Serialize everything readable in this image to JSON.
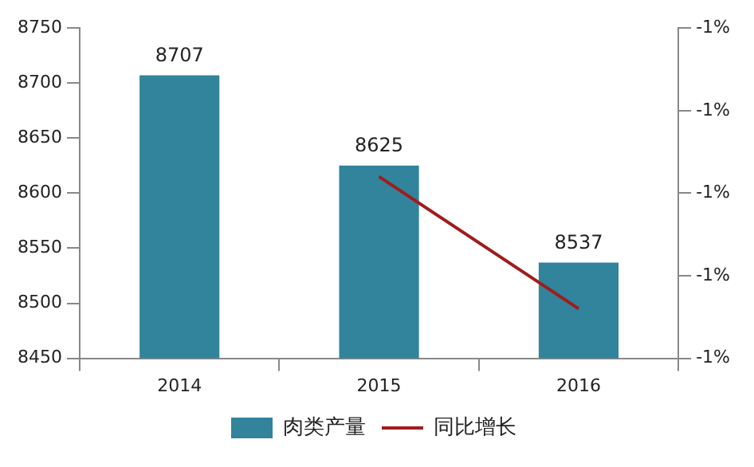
{
  "chart_data": {
    "type": "bar",
    "categories": [
      "2014",
      "2015",
      "2016"
    ],
    "series": [
      {
        "name": "肉类产量",
        "color": "#31849b",
        "values": [
          8707,
          8625,
          8537
        ],
        "value_labels": [
          "8707",
          "8625",
          "8537"
        ]
      },
      {
        "name": "同比增长",
        "type": "line",
        "axis": "y2",
        "color": "#a01c1c",
        "values": [
          null,
          -0.98,
          -1.14
        ]
      }
    ],
    "ylim": [
      8450,
      8750
    ],
    "yticks": [
      8450,
      8500,
      8550,
      8600,
      8650,
      8700,
      8750
    ],
    "y2lim": [
      -1.2,
      -0.8
    ],
    "y2ticks": [
      {
        "value": -1.2,
        "label": "-1%"
      },
      {
        "value": -1.1,
        "label": "-1%"
      },
      {
        "value": -1.0,
        "label": "-1%"
      },
      {
        "value": -0.9,
        "label": "-1%"
      },
      {
        "value": -0.8,
        "label": "-1%"
      }
    ],
    "grid": false,
    "legend": "bottom",
    "marker": "none"
  }
}
